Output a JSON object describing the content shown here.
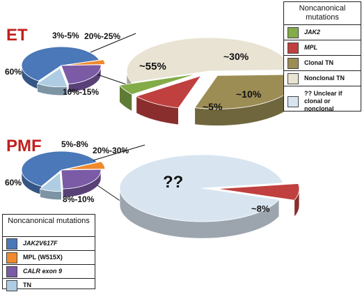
{
  "chart_data": [
    {
      "type": "pie",
      "title": "ET",
      "slices": [
        {
          "label": "60%",
          "value": 60,
          "category": "JAK2V617F",
          "color": "#4a78b8"
        },
        {
          "label": "3%-5%",
          "value": 4,
          "category": "MPL (W515X)",
          "color": "#f08a2c"
        },
        {
          "label": "20%-25%",
          "value": 22.5,
          "category": "CALR exon 9",
          "color": "#7b5aa6"
        },
        {
          "label": "10%-15%",
          "value": 12.5,
          "category": "TN",
          "color": "#aecde4"
        }
      ],
      "breakout": {
        "of": "TN",
        "slices": [
          {
            "label": "~55%",
            "value": 55,
            "category": "Nonclonal TN",
            "color": "#e8e3d2"
          },
          {
            "label": "~30%",
            "value": 30,
            "category": "Clonal TN",
            "color": "#9c8d55"
          },
          {
            "label": "~10%",
            "value": 10,
            "category": "MPL",
            "color": "#c0403f"
          },
          {
            "label": "~5%",
            "value": 5,
            "category": "JAK2",
            "color": "#83ac49"
          }
        ]
      }
    },
    {
      "type": "pie",
      "title": "PMF",
      "slices": [
        {
          "label": "60%",
          "value": 60,
          "category": "JAK2V617F",
          "color": "#4a78b8"
        },
        {
          "label": "5%-8%",
          "value": 6.5,
          "category": "MPL (W515X)",
          "color": "#f08a2c"
        },
        {
          "label": "20%-30%",
          "value": 25,
          "category": "CALR exon 9",
          "color": "#7b5aa6"
        },
        {
          "label": "8%-10%",
          "value": 9,
          "category": "TN",
          "color": "#aecde4"
        }
      ],
      "breakout": {
        "of": "TN",
        "slices": [
          {
            "label": "??",
            "value": 92,
            "category": "?? Unclear if clonal or nonclonal",
            "color": "#d8e5f1"
          },
          {
            "label": "~8%",
            "value": 8,
            "category": "MPL",
            "color": "#c0403f"
          }
        ]
      }
    }
  ],
  "legends": {
    "noncanonical": {
      "title": "Noncanonical mutations",
      "items": [
        {
          "label": "JAK2",
          "color": "#83ac49"
        },
        {
          "label": "MPL",
          "color": "#c0403f"
        },
        {
          "label": "Clonal TN",
          "color": "#9c8d55"
        },
        {
          "label": "Nonclonal TN",
          "color": "#e8e3d2"
        },
        {
          "label": "?? Unclear if clonal or nonclonal",
          "color": "#d8e5f1"
        }
      ]
    },
    "canonical": {
      "title": "Noncanonical mutations",
      "items": [
        {
          "label": "JAK2V617F",
          "color": "#4a78b8"
        },
        {
          "label": "MPL (W515X)",
          "color": "#f08a2c"
        },
        {
          "label": "CALR exon 9",
          "color": "#7b5aa6"
        },
        {
          "label": "TN",
          "color": "#aecde4"
        }
      ]
    }
  }
}
